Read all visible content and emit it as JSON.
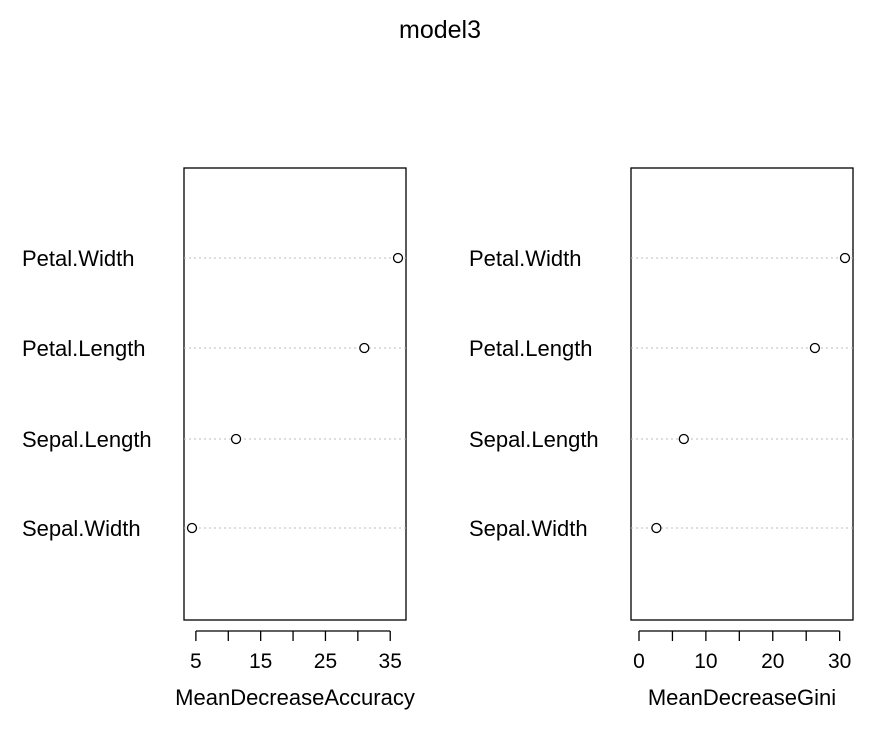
{
  "title": "model3",
  "chart_data": [
    {
      "type": "scatter",
      "subtype": "dotchart",
      "categories": [
        "Petal.Width",
        "Petal.Length",
        "Sepal.Length",
        "Sepal.Width"
      ],
      "values": [
        36.2,
        31.0,
        11.2,
        4.4
      ],
      "xlabel": "MeanDecreaseAccuracy",
      "xlim": [
        4.4,
        36.2
      ],
      "xticks": [
        5,
        10,
        15,
        20,
        25,
        30,
        35
      ],
      "xtick_labels": [
        "5",
        "",
        "15",
        "",
        "25",
        "",
        "35"
      ],
      "grid": "dotted horizontal guide lines",
      "marker": "open-circle",
      "colors": {
        "guide": "#bebebe",
        "marker": "#000000"
      }
    },
    {
      "type": "scatter",
      "subtype": "dotchart",
      "categories": [
        "Petal.Width",
        "Petal.Length",
        "Sepal.Length",
        "Sepal.Width"
      ],
      "values": [
        30.8,
        26.3,
        6.7,
        2.6
      ],
      "xlabel": "MeanDecreaseGini",
      "xlim": [
        0,
        30.8
      ],
      "xticks": [
        0,
        5,
        10,
        15,
        20,
        25,
        30
      ],
      "xtick_labels": [
        "0",
        "",
        "10",
        "",
        "20",
        "",
        "30"
      ],
      "grid": "dotted horizontal guide lines",
      "marker": "open-circle",
      "colors": {
        "guide": "#bebebe",
        "marker": "#000000"
      }
    }
  ]
}
